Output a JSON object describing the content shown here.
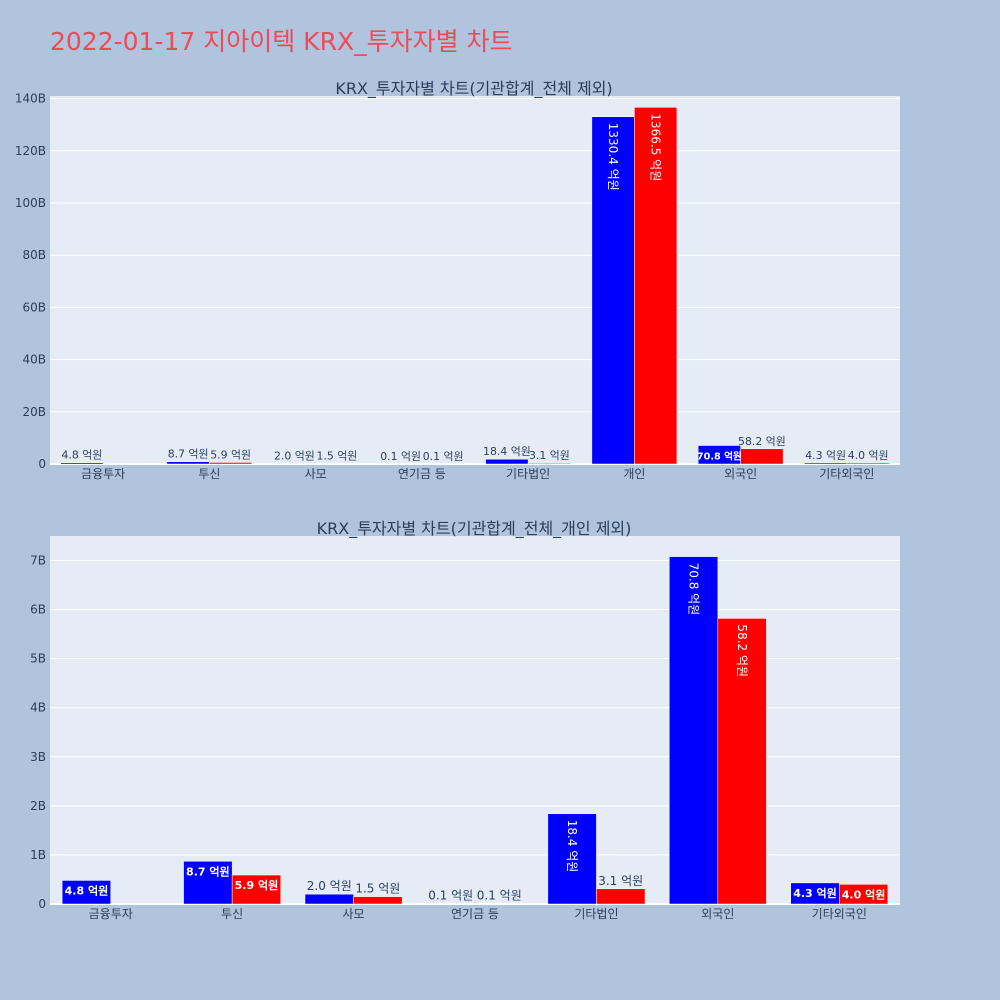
{
  "page": {
    "title": "2022-01-17 지아이텍 KRX_투자자별 차트"
  },
  "chart_data": [
    {
      "type": "bar",
      "title": "KRX_투자자별 차트(기관합계_전체 제외)",
      "categories": [
        "금융투자",
        "투신",
        "사모",
        "연기금 등",
        "기타법인",
        "개인",
        "외국인",
        "기타외국인"
      ],
      "series": [
        {
          "color": "#0000ff",
          "values": [
            0.48,
            0.87,
            0.2,
            0.01,
            1.84,
            133.04,
            7.08,
            0.43
          ],
          "labels": [
            "4.8 억원",
            "8.7 억원",
            "2.0 억원",
            "0.1 억원",
            "18.4 억원",
            "1330.4 억원",
            "70.8 억원",
            "4.3 억원"
          ]
        },
        {
          "color": "#ff0000",
          "values": [
            0.0,
            0.59,
            0.15,
            0.01,
            0.31,
            136.65,
            5.82,
            0.4
          ],
          "labels": [
            "",
            "5.9 억원",
            "1.5 억원",
            "0.1 억원",
            "3.1 억원",
            "1366.5 억원",
            "58.2 억원",
            "4.0 억원"
          ]
        }
      ],
      "ylim": [
        0,
        141
      ],
      "yticks": [
        0,
        20,
        40,
        60,
        80,
        100,
        120,
        140
      ],
      "ytick_labels": [
        "0",
        "20B",
        "40B",
        "60B",
        "80B",
        "100B",
        "120B",
        "140B"
      ],
      "grid": true
    },
    {
      "type": "bar",
      "title": "KRX_투자자별 차트(기관합계_전체_개인 제외)",
      "categories": [
        "금융투자",
        "투신",
        "사모",
        "연기금 등",
        "기타법인",
        "외국인",
        "기타외국인"
      ],
      "series": [
        {
          "color": "#0000ff",
          "values": [
            0.48,
            0.87,
            0.2,
            0.01,
            1.84,
            7.08,
            0.43
          ],
          "labels": [
            "4.8 억원",
            "8.7 억원",
            "2.0 억원",
            "0.1 억원",
            "18.4 억원",
            "70.8 억원",
            "4.3 억원"
          ]
        },
        {
          "color": "#ff0000",
          "values": [
            0.0,
            0.59,
            0.15,
            0.01,
            0.31,
            5.82,
            0.4
          ],
          "labels": [
            "",
            "5.9 억원",
            "1.5 억원",
            "0.1 억원",
            "3.1 억원",
            "58.2 억원",
            "4.0 억원"
          ]
        }
      ],
      "ylim": [
        0,
        7.5
      ],
      "yticks": [
        0,
        1,
        2,
        3,
        4,
        5,
        6,
        7
      ],
      "ytick_labels": [
        "0",
        "1B",
        "2B",
        "3B",
        "4B",
        "5B",
        "6B",
        "7B"
      ],
      "grid": true
    }
  ]
}
